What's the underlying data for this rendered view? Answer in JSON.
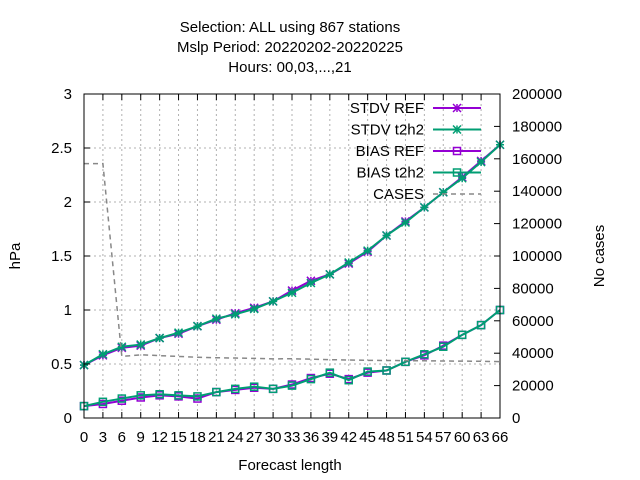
{
  "chart_data": {
    "type": "line",
    "title_lines": [
      "Selection: ALL using   867 stations",
      "Mslp   Period: 20220202-20220225",
      "Hours:  00,03,...,21"
    ],
    "xlabel": "Forecast length",
    "ylabel": "hPa",
    "y2label": "No cases",
    "x": [
      0,
      3,
      6,
      9,
      12,
      15,
      18,
      21,
      24,
      27,
      30,
      33,
      36,
      39,
      42,
      45,
      48,
      51,
      54,
      57,
      60,
      63,
      66
    ],
    "x_ticks": [
      "0",
      "3",
      "6",
      "9",
      "12",
      "15",
      "18",
      "21",
      "24",
      "27",
      "30",
      "33",
      "36",
      "39",
      "42",
      "45",
      "48",
      "51",
      "54",
      "57",
      "60",
      "63",
      "66"
    ],
    "ylim": [
      0,
      3
    ],
    "y_ticks": [
      "0",
      "0.5",
      "1",
      "1.5",
      "2",
      "2.5",
      "3"
    ],
    "y2lim": [
      0,
      200000
    ],
    "y2_ticks": [
      "0",
      "20000",
      "40000",
      "60000",
      "80000",
      "100000",
      "120000",
      "140000",
      "160000",
      "180000",
      "200000"
    ],
    "grid": true,
    "legend_position": "top-right",
    "series": [
      {
        "name": "STDV REF",
        "axis": "y",
        "color": "#9400d3",
        "marker": "star",
        "values": [
          0.49,
          0.58,
          0.65,
          0.67,
          0.74,
          0.78,
          0.85,
          0.91,
          0.97,
          1.02,
          1.08,
          1.18,
          1.27,
          1.33,
          1.43,
          1.54,
          1.69,
          1.82,
          1.95,
          2.09,
          2.23,
          2.38,
          2.53
        ]
      },
      {
        "name": "STDV t2h2",
        "axis": "y",
        "color": "#009e73",
        "marker": "star",
        "values": [
          0.49,
          0.59,
          0.66,
          0.68,
          0.74,
          0.79,
          0.85,
          0.92,
          0.96,
          1.01,
          1.08,
          1.16,
          1.25,
          1.33,
          1.44,
          1.55,
          1.69,
          1.81,
          1.95,
          2.09,
          2.22,
          2.37,
          2.53
        ]
      },
      {
        "name": "BIAS REF",
        "axis": "y",
        "color": "#9400d3",
        "marker": "square",
        "values": [
          0.11,
          0.13,
          0.16,
          0.19,
          0.21,
          0.2,
          0.18,
          0.24,
          0.26,
          0.28,
          0.27,
          0.31,
          0.37,
          0.41,
          0.36,
          0.42,
          0.44,
          0.52,
          0.58,
          0.67,
          0.77,
          0.86,
          1.0
        ]
      },
      {
        "name": "BIAS t2h2",
        "axis": "y",
        "color": "#009e73",
        "marker": "square",
        "values": [
          0.11,
          0.15,
          0.18,
          0.21,
          0.22,
          0.21,
          0.2,
          0.24,
          0.27,
          0.29,
          0.27,
          0.3,
          0.36,
          0.42,
          0.35,
          0.43,
          0.44,
          0.52,
          0.59,
          0.66,
          0.77,
          0.86,
          1.0
        ]
      },
      {
        "name": "CASES",
        "axis": "y2",
        "color": "#888888",
        "marker": "none",
        "values": [
          157000,
          157000,
          38000,
          39000,
          38500,
          38000,
          37500,
          37200,
          37000,
          36800,
          36500,
          36600,
          36300,
          36000,
          35800,
          35600,
          35500,
          35400,
          35300,
          35200,
          35100,
          35000,
          34800
        ]
      }
    ]
  }
}
